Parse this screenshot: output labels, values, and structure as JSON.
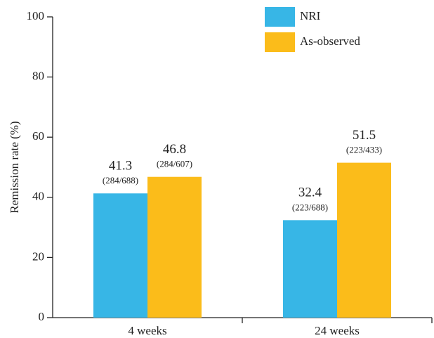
{
  "chart_data": {
    "type": "bar",
    "y_label": "Remission rate (%)",
    "categories": [
      "4 weeks",
      "24 weeks"
    ],
    "series": [
      {
        "name": "NRI",
        "color": "#37b6e6",
        "values": [
          41.3,
          32.4
        ],
        "fractions": [
          "(284/688)",
          "(223/688)"
        ]
      },
      {
        "name": "As-observed",
        "color": "#fbbc1a",
        "values": [
          46.8,
          51.5
        ],
        "fractions": [
          "(284/607)",
          "(223/433)"
        ]
      }
    ],
    "ylim": [
      0,
      100
    ],
    "yticks": [
      0,
      20,
      40,
      60,
      80,
      100
    ],
    "grid": false,
    "legend": "top-right"
  }
}
